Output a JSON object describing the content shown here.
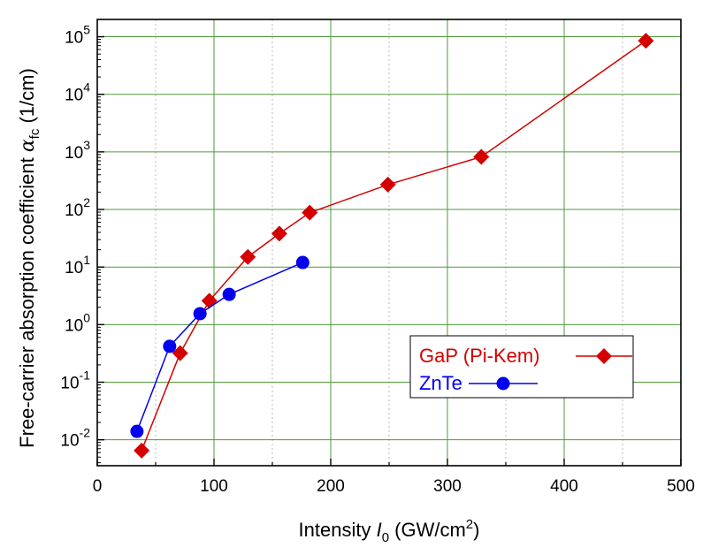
{
  "chart_data": {
    "type": "scatter",
    "xlabel": {
      "main": "Intensity ",
      "italic": "I",
      "sub": "0",
      "unit": " (GW/cm",
      "sup": "2",
      "close": ")"
    },
    "ylabel": {
      "main": "Free-carrier absorption coefficient ",
      "italic": "α",
      "sub": "fc",
      "unit": " (1/cm)"
    },
    "xlim": [
      0,
      500
    ],
    "ylim_log10": [
      -2.45,
      5.3
    ],
    "yscale": "log",
    "grid": true,
    "x_ticks": [
      "0",
      "100",
      "200",
      "300",
      "400",
      "500"
    ],
    "x_tick_values": [
      0,
      100,
      200,
      300,
      400,
      500
    ],
    "y_ticks": [
      {
        "base": "10",
        "exp": "-2",
        "value": 0.01
      },
      {
        "base": "10",
        "exp": "-1",
        "value": 0.1
      },
      {
        "base": "10",
        "exp": "0",
        "value": 1
      },
      {
        "base": "10",
        "exp": "1",
        "value": 10
      },
      {
        "base": "10",
        "exp": "2",
        "value": 100
      },
      {
        "base": "10",
        "exp": "3",
        "value": 1000
      },
      {
        "base": "10",
        "exp": "4",
        "value": 10000
      },
      {
        "base": "10",
        "exp": "5",
        "value": 100000
      }
    ],
    "legend_position": "center-right",
    "series": [
      {
        "name": "GaP (Pi-Kem)",
        "color": "#d40000",
        "marker": "diamond",
        "points": [
          [
            38,
            0.0065
          ],
          [
            71,
            0.32
          ],
          [
            96,
            2.6
          ],
          [
            129,
            15
          ],
          [
            156,
            38
          ],
          [
            182,
            88
          ],
          [
            249,
            270
          ],
          [
            329,
            820
          ],
          [
            470,
            85000
          ]
        ]
      },
      {
        "name": "ZnTe",
        "color": "#0000ee",
        "marker": "circle",
        "points": [
          [
            34,
            0.014
          ],
          [
            62,
            0.42
          ],
          [
            88,
            1.55
          ],
          [
            113,
            3.35
          ],
          [
            176,
            12
          ]
        ]
      }
    ]
  }
}
